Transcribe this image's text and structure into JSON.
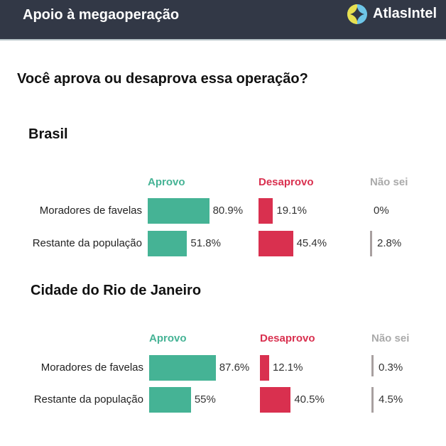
{
  "header": {
    "title": "Apoio à megaoperação",
    "brand": "AtlasIntel"
  },
  "question": "Você aprova ou desaprova essa operação?",
  "colors": {
    "aprovo": "#45b395",
    "desaprovo": "#d9304f",
    "nao_sei": "#a8a0a0",
    "header_bg": "#323846"
  },
  "chart_data": [
    {
      "type": "bar",
      "title": "Brasil",
      "columns": [
        "Aprovo",
        "Desaprovo",
        "Não sei"
      ],
      "categories": [
        "Moradores de favelas",
        "Restante da população"
      ],
      "series": [
        {
          "name": "Aprovo",
          "values": [
            80.9,
            51.8
          ],
          "labels": [
            "80.9%",
            "51.8%"
          ]
        },
        {
          "name": "Desaprovo",
          "values": [
            19.1,
            45.4
          ],
          "labels": [
            "19.1%",
            "45.4%"
          ]
        },
        {
          "name": "Não sei",
          "values": [
            0,
            2.8
          ],
          "labels": [
            "0%",
            "2.8%"
          ]
        }
      ]
    },
    {
      "type": "bar",
      "title": "Cidade do Rio de Janeiro",
      "columns": [
        "Aprovo",
        "Desaprovo",
        "Não sei"
      ],
      "categories": [
        "Moradores de favelas",
        "Restante da população"
      ],
      "series": [
        {
          "name": "Aprovo",
          "values": [
            87.6,
            55
          ],
          "labels": [
            "87.6%",
            "55%"
          ]
        },
        {
          "name": "Desaprovo",
          "values": [
            12.1,
            40.5
          ],
          "labels": [
            "12.1%",
            "40.5%"
          ]
        },
        {
          "name": "Não sei",
          "values": [
            0.3,
            4.5
          ],
          "labels": [
            "0.3%",
            "4.5%"
          ]
        }
      ]
    }
  ]
}
